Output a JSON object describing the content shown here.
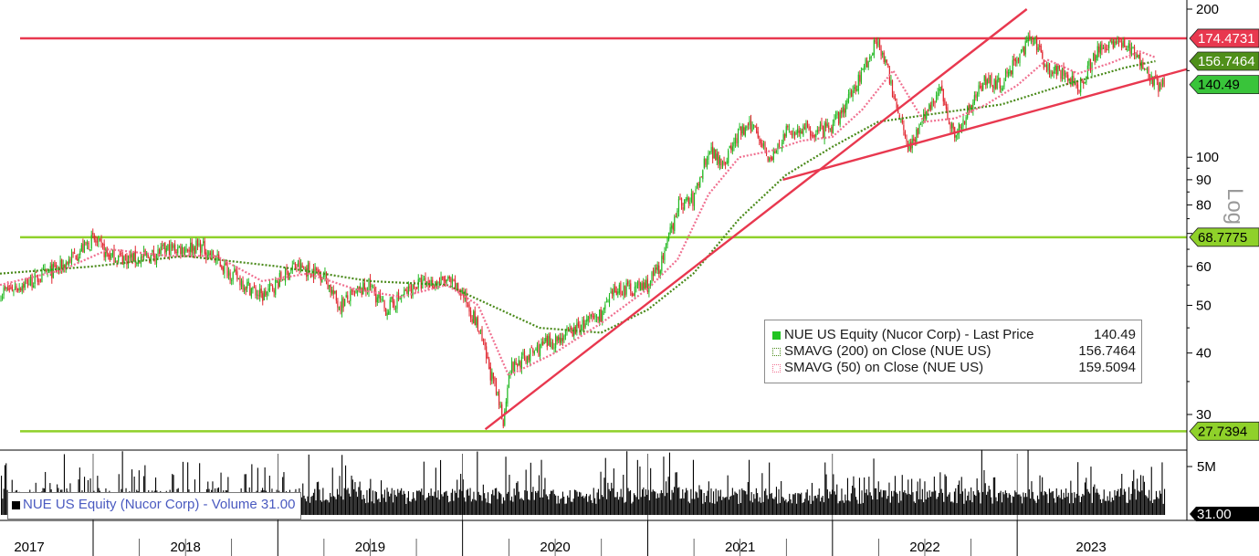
{
  "chart_data": {
    "type": "candlestick",
    "security": "NUE US Equity (Nucor Corp)",
    "scale": "log",
    "scale_label": "Log",
    "y_ticks": [
      30,
      40,
      50,
      60,
      70,
      80,
      90,
      100,
      200
    ],
    "y_tick_labels": [
      "30",
      "40",
      "50",
      "60",
      "",
      "80",
      "90",
      "100",
      "200"
    ],
    "x_years": [
      "2017",
      "2018",
      "2019",
      "2020",
      "2021",
      "2022",
      "2023"
    ],
    "price_series": {
      "name": "Last Price",
      "points": [
        [
          "2017-07",
          53
        ],
        [
          "2017-09",
          56
        ],
        [
          "2017-11",
          60
        ],
        [
          "2017-12",
          64
        ],
        [
          "2018-01",
          68
        ],
        [
          "2018-02",
          63
        ],
        [
          "2018-04",
          62
        ],
        [
          "2018-06",
          65
        ],
        [
          "2018-08",
          66
        ],
        [
          "2018-09",
          62
        ],
        [
          "2018-10",
          58
        ],
        [
          "2018-12",
          52
        ],
        [
          "2019-02",
          60
        ],
        [
          "2019-04",
          58
        ],
        [
          "2019-05",
          50
        ],
        [
          "2019-07",
          55
        ],
        [
          "2019-08",
          49
        ],
        [
          "2019-10",
          55
        ],
        [
          "2019-12",
          56
        ],
        [
          "2020-01",
          53
        ],
        [
          "2020-02",
          45
        ],
        [
          "2020-03",
          35
        ],
        [
          "2020-03-23",
          29
        ],
        [
          "2020-04",
          37
        ],
        [
          "2020-06",
          41
        ],
        [
          "2020-08",
          44
        ],
        [
          "2020-10",
          48
        ],
        [
          "2020-11",
          54
        ],
        [
          "2020-12",
          54
        ],
        [
          "2021-01",
          55
        ],
        [
          "2021-02",
          62
        ],
        [
          "2021-03",
          80
        ],
        [
          "2021-04",
          82
        ],
        [
          "2021-05",
          104
        ],
        [
          "2021-06",
          98
        ],
        [
          "2021-07",
          112
        ],
        [
          "2021-08",
          116
        ],
        [
          "2021-09",
          98
        ],
        [
          "2021-10",
          112
        ],
        [
          "2021-11",
          114
        ],
        [
          "2021-12",
          112
        ],
        [
          "2022-01",
          115
        ],
        [
          "2022-02",
          130
        ],
        [
          "2022-04",
          175
        ],
        [
          "2022-05",
          135
        ],
        [
          "2022-06",
          105
        ],
        [
          "2022-07",
          120
        ],
        [
          "2022-08",
          138
        ],
        [
          "2022-09",
          110
        ],
        [
          "2022-10",
          128
        ],
        [
          "2022-11",
          145
        ],
        [
          "2022-12",
          140
        ],
        [
          "2023-01",
          160
        ],
        [
          "2023-02",
          175
        ],
        [
          "2023-03",
          152
        ],
        [
          "2023-04",
          148
        ],
        [
          "2023-05",
          138
        ],
        [
          "2023-06",
          160
        ],
        [
          "2023-07",
          172
        ],
        [
          "2023-08",
          170
        ],
        [
          "2023-09",
          158
        ],
        [
          "2023-10",
          140.49
        ]
      ]
    },
    "sma_200": {
      "name": "SMAVG (200) on Close (NUE US)",
      "points": [
        [
          "2017-07",
          58
        ],
        [
          "2018-01",
          60
        ],
        [
          "2018-07",
          63
        ],
        [
          "2019-01",
          60
        ],
        [
          "2019-07",
          56
        ],
        [
          "2019-12",
          55
        ],
        [
          "2020-06",
          45
        ],
        [
          "2020-10",
          44
        ],
        [
          "2021-01",
          49
        ],
        [
          "2021-04",
          58
        ],
        [
          "2021-07",
          75
        ],
        [
          "2021-10",
          92
        ],
        [
          "2022-01",
          105
        ],
        [
          "2022-04",
          118
        ],
        [
          "2022-08",
          123
        ],
        [
          "2022-12",
          128
        ],
        [
          "2023-04",
          140
        ],
        [
          "2023-08",
          152
        ],
        [
          "2023-10",
          156.7464
        ]
      ]
    },
    "sma_50": {
      "name": "SMAVG (50) on Close (NUE US)",
      "points": [
        [
          "2017-07",
          55
        ],
        [
          "2017-11",
          59
        ],
        [
          "2018-02",
          65
        ],
        [
          "2018-06",
          63
        ],
        [
          "2018-09",
          63
        ],
        [
          "2018-12",
          56
        ],
        [
          "2019-03",
          58
        ],
        [
          "2019-06",
          54
        ],
        [
          "2019-09",
          52
        ],
        [
          "2019-12",
          55
        ],
        [
          "2020-02",
          50
        ],
        [
          "2020-04",
          36
        ],
        [
          "2020-07",
          40
        ],
        [
          "2020-10",
          46
        ],
        [
          "2021-01",
          54
        ],
        [
          "2021-03",
          62
        ],
        [
          "2021-05",
          84
        ],
        [
          "2021-07",
          100
        ],
        [
          "2021-09",
          103
        ],
        [
          "2021-11",
          108
        ],
        [
          "2022-01",
          110
        ],
        [
          "2022-03",
          125
        ],
        [
          "2022-05",
          150
        ],
        [
          "2022-07",
          118
        ],
        [
          "2022-09",
          120
        ],
        [
          "2022-11",
          128
        ],
        [
          "2023-01",
          140
        ],
        [
          "2023-03",
          158
        ],
        [
          "2023-05",
          148
        ],
        [
          "2023-07",
          155
        ],
        [
          "2023-09",
          164
        ],
        [
          "2023-10",
          159.5094
        ]
      ]
    },
    "horizontal_levels": [
      {
        "value": 174.4731,
        "label": "174.4731",
        "color": "#e8384f"
      },
      {
        "value": 68.7775,
        "label": "68.7775",
        "color": "#8fd12a"
      },
      {
        "value": 27.7394,
        "label": "27.7394",
        "color": "#8fd12a"
      }
    ],
    "value_tags": [
      {
        "value": 156.7464,
        "label": "156.7464",
        "color": "#4f8f1a",
        "text_color": "#ffffff"
      },
      {
        "value": 140.49,
        "label": "140.49",
        "color": "#39c43a",
        "text_color": "#000000"
      }
    ],
    "trendlines": [
      {
        "from": [
          "2020-02-15",
          28
        ],
        "to": [
          "2023-01-20",
          200
        ]
      },
      {
        "from": [
          "2021-09-25",
          90
        ],
        "to": [
          "2023-11-01",
          148
        ]
      }
    ],
    "volume": {
      "name": "NUE US Equity (Nucor Corp) - Volume 31.00",
      "axis_labels": [
        "5M",
        "31.00"
      ]
    },
    "colors": {
      "up": "#21b821",
      "down": "#e0252e",
      "level_red": "#e8384f",
      "level_green": "#8fd12a",
      "sma200": "#4a8a1a",
      "sma50": "#f07090",
      "trend": "#e8384f"
    }
  },
  "legend": {
    "price": {
      "label": "NUE US Equity (Nucor Corp) - Last Price",
      "value": "140.49"
    },
    "sma200": {
      "label": "SMAVG (200)  on Close (NUE US)",
      "value": "156.7464"
    },
    "sma50": {
      "label": "SMAVG (50)  on Close (NUE US)",
      "value": "159.5094"
    }
  },
  "volume_legend": "NUE US Equity (Nucor Corp) - Volume 31.00"
}
